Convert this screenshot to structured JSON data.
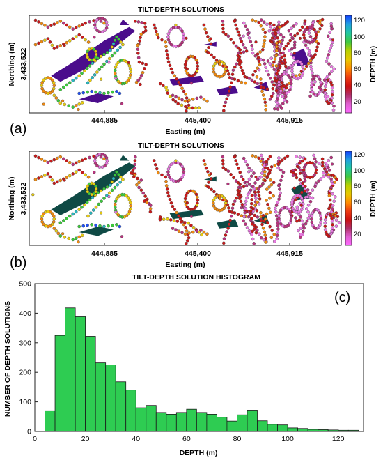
{
  "panels": [
    {
      "letter": "(a)",
      "title": "TILT-DEPTH SOLUTIONS",
      "xlabel": "Easting (m)",
      "ylabel": "Northing (m)",
      "ytick": "3,433,522",
      "xticks": [
        "444,885",
        "445,400",
        "445,915"
      ],
      "colorbar_label": "DEPTH (m)",
      "colorbar_ticks": [
        "120",
        "100",
        "80",
        "60",
        "40",
        "20"
      ],
      "body_color": "#4b0d8c"
    },
    {
      "letter": "(b)",
      "title": "TILT-DEPTH SOLUTIONS",
      "xlabel": "Easting (m)",
      "ylabel": "Northing (m)",
      "ytick": "3,433,522",
      "xticks": [
        "444,885",
        "445,400",
        "445,915"
      ],
      "colorbar_label": "DEPTH (m)",
      "colorbar_ticks": [
        "120",
        "100",
        "80",
        "60",
        "40",
        "20"
      ],
      "body_color": "#0f4a45"
    }
  ],
  "histogram": {
    "letter": "(c)",
    "bar_color": "#2ecc52"
  },
  "colormap": [
    "#ff66ff",
    "#e060d0",
    "#b0306a",
    "#cc1010",
    "#ee3a10",
    "#ff8c00",
    "#e8c800",
    "#b8d000",
    "#40c840",
    "#20c8a0",
    "#20a0e0",
    "#1040ff"
  ],
  "chart_data": {
    "type": "bar",
    "title": "TILT-DEPTH SOLUTION HISTOGRAM",
    "xlabel": "DEPTH (m)",
    "ylabel": "NUMBER OF DEPTH SOLUTIONS",
    "xlim": [
      0,
      130
    ],
    "ylim": [
      0,
      500
    ],
    "xticks": [
      0,
      20,
      40,
      60,
      80,
      100,
      120
    ],
    "yticks": [
      0,
      100,
      200,
      300,
      400,
      500
    ],
    "bin_width": 4,
    "bin_centers": [
      6,
      10,
      14,
      18,
      22,
      26,
      30,
      34,
      38,
      42,
      46,
      50,
      54,
      58,
      62,
      66,
      70,
      74,
      78,
      82,
      86,
      90,
      94,
      98,
      102,
      106,
      110,
      114,
      118,
      122,
      126
    ],
    "values": [
      70,
      325,
      418,
      388,
      322,
      232,
      225,
      168,
      140,
      80,
      88,
      64,
      58,
      64,
      75,
      64,
      58,
      48,
      35,
      56,
      72,
      36,
      24,
      22,
      12,
      10,
      7,
      6,
      5,
      4,
      4
    ]
  }
}
